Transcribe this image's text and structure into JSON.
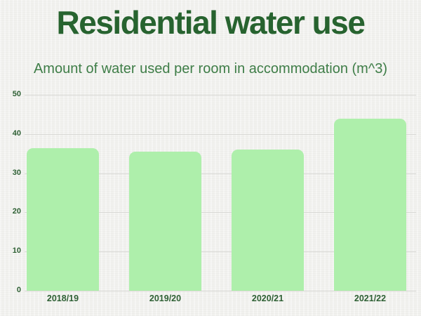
{
  "chart_data": {
    "type": "bar",
    "title": "Residential water use",
    "subtitle": "Amount of water used per room in accommodation (m^3)",
    "categories": [
      "2018/19",
      "2019/20",
      "2020/21",
      "2021/22"
    ],
    "values": [
      36.4,
      35.4,
      36.1,
      43.9
    ],
    "xlabel": "",
    "ylabel": "",
    "ylim": [
      0,
      50
    ],
    "yticks": [
      0,
      10,
      20,
      30,
      40,
      50
    ],
    "grid": "horizontal gridlines at each y tick",
    "legend": "none",
    "bar_style": "rounded top corners, flat bottom on baseline",
    "colors": {
      "bar_fill": "#aeefab",
      "title_text": "#27632f",
      "subtitle_text": "#3e7d47",
      "axis_text": "#2d5f33",
      "gridline": "#d9d9d5",
      "background": "#f1f1ee"
    }
  }
}
